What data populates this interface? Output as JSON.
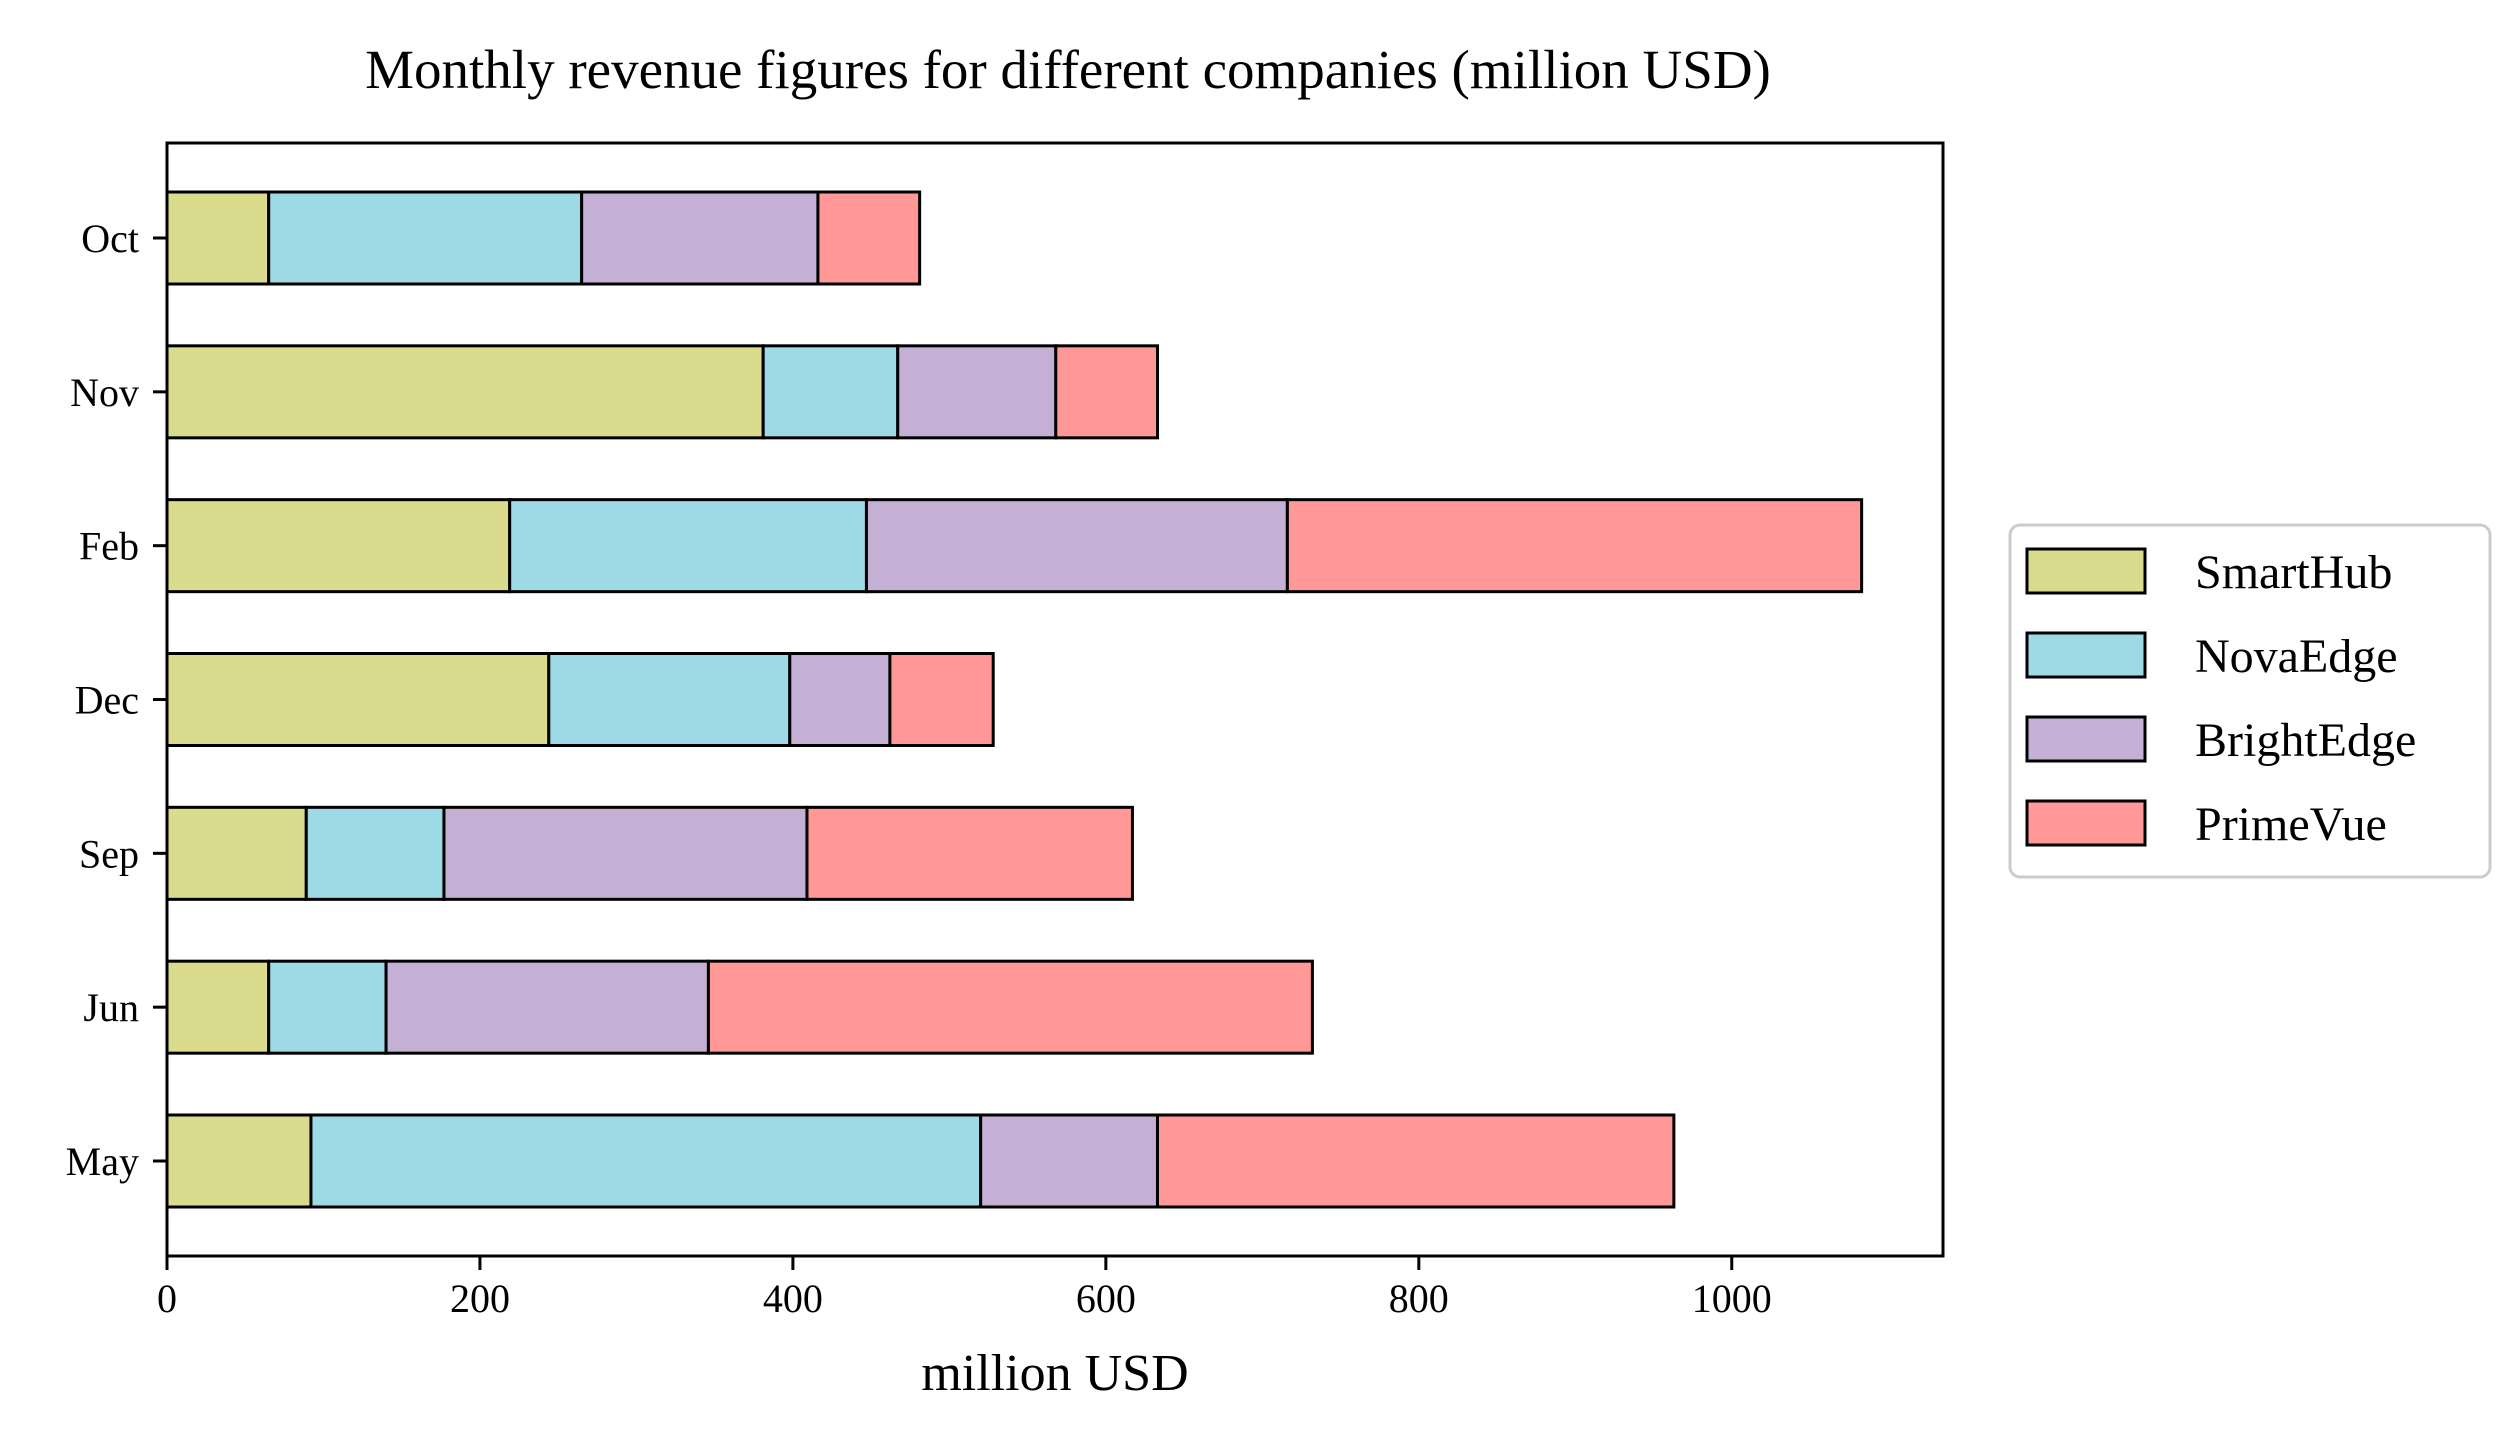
{
  "chart_data": {
    "type": "bar",
    "orientation": "horizontal",
    "stacked": true,
    "title": "Monthly revenue figures for different companies (million USD)",
    "xlabel": "million USD",
    "ylabel": "",
    "xlim": [
      0,
      1135
    ],
    "xticks": [
      0,
      200,
      400,
      600,
      800,
      1000
    ],
    "categories": [
      "May",
      "Jun",
      "Sep",
      "Dec",
      "Feb",
      "Nov",
      "Oct"
    ],
    "series": [
      {
        "name": "SmartHub",
        "color": "#dbdb8d",
        "values": [
          92,
          65,
          89,
          244,
          219,
          381,
          65
        ]
      },
      {
        "name": "NovaEdge",
        "color": "#9edae5",
        "values": [
          428,
          75,
          88,
          154,
          228,
          86,
          200
        ]
      },
      {
        "name": "BrightEdge",
        "color": "#c5b0d5",
        "values": [
          113,
          206,
          232,
          64,
          269,
          101,
          151
        ]
      },
      {
        "name": "PrimeVue",
        "color": "#ff9896",
        "values": [
          330,
          386,
          208,
          66,
          367,
          65,
          65
        ]
      }
    ],
    "grid": false,
    "legend_position": "right"
  }
}
